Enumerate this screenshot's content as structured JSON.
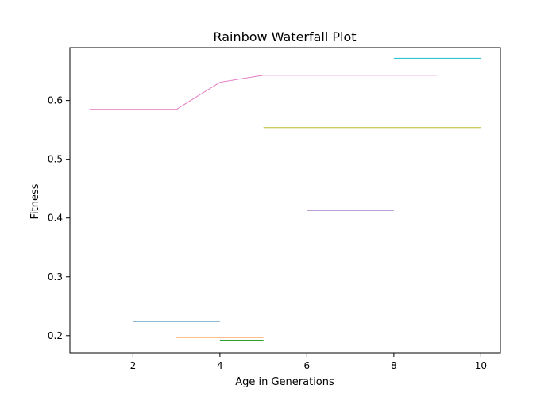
{
  "chart_data": {
    "type": "line",
    "title": "Rainbow Waterfall Plot",
    "xlabel": "Age in Generations",
    "ylabel": "Fitness",
    "xlim": [
      0.55,
      10.45
    ],
    "ylim": [
      0.17,
      0.69
    ],
    "xticks": [
      2,
      4,
      6,
      8,
      10
    ],
    "yticks": [
      0.2,
      0.3,
      0.4,
      0.5,
      0.6
    ],
    "xtick_labels": [
      "2",
      "4",
      "6",
      "8",
      "10"
    ],
    "ytick_labels": [
      "0.2",
      "0.3",
      "0.4",
      "0.5",
      "0.6"
    ],
    "grid": false,
    "legend": "none",
    "series": [
      {
        "color": "#1f77b4",
        "x": [
          2,
          3,
          4
        ],
        "y": [
          0.224,
          0.224,
          0.224
        ]
      },
      {
        "color": "#ff7f0e",
        "x": [
          3,
          4,
          5
        ],
        "y": [
          0.197,
          0.197,
          0.197
        ]
      },
      {
        "color": "#2ca02c",
        "x": [
          4,
          5
        ],
        "y": [
          0.191,
          0.191
        ]
      },
      {
        "color": "#9467bd",
        "x": [
          6,
          7,
          8
        ],
        "y": [
          0.413,
          0.413,
          0.413
        ]
      },
      {
        "color": "#e377c2",
        "x": [
          1,
          2,
          3,
          4,
          5,
          6,
          7,
          8,
          9
        ],
        "y": [
          0.585,
          0.585,
          0.585,
          0.631,
          0.643,
          0.643,
          0.643,
          0.643,
          0.643
        ]
      },
      {
        "color": "#bcbd22",
        "x": [
          5,
          6,
          7,
          8,
          9,
          10
        ],
        "y": [
          0.554,
          0.554,
          0.554,
          0.554,
          0.554,
          0.554
        ]
      },
      {
        "color": "#17becf",
        "x": [
          8,
          9,
          10
        ],
        "y": [
          0.672,
          0.672,
          0.672
        ]
      }
    ]
  }
}
